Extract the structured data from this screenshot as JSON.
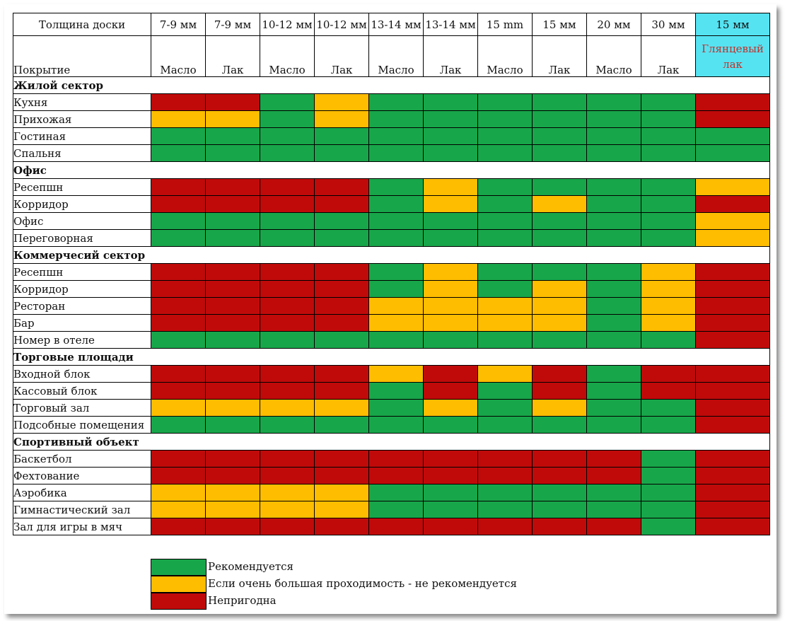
{
  "title_header": {
    "thickness_label": "Толщина доски",
    "coating_label": "Покрытие"
  },
  "columns": [
    {
      "thickness": "7-9 мм",
      "coating": "Масло"
    },
    {
      "thickness": "7-9 мм",
      "coating": "Лак"
    },
    {
      "thickness": "10-12 мм",
      "coating": "Масло"
    },
    {
      "thickness": "10-12 мм",
      "coating": "Лак"
    },
    {
      "thickness": "13-14 мм",
      "coating": "Масло"
    },
    {
      "thickness": "13-14 мм",
      "coating": "Лак"
    },
    {
      "thickness": "15 mm",
      "coating": "Масло"
    },
    {
      "thickness": "15 мм",
      "coating": "Лак"
    },
    {
      "thickness": "20 мм",
      "coating": "Масло"
    },
    {
      "thickness": "30 мм",
      "coating": "Лак"
    },
    {
      "thickness": "15 мм",
      "coating": "Глянцевый лак"
    }
  ],
  "sections": [
    {
      "title": "Жилой сектор",
      "rows": [
        {
          "name": "Кухня",
          "cells": [
            "r",
            "r",
            "g",
            "y",
            "g",
            "g",
            "g",
            "g",
            "g",
            "g",
            "r"
          ]
        },
        {
          "name": "Прихожая",
          "cells": [
            "y",
            "y",
            "g",
            "y",
            "g",
            "g",
            "g",
            "g",
            "g",
            "g",
            "r"
          ]
        },
        {
          "name": "Гостиная",
          "cells": [
            "g",
            "g",
            "g",
            "g",
            "g",
            "g",
            "g",
            "g",
            "g",
            "g",
            "g"
          ]
        },
        {
          "name": "Спальня",
          "cells": [
            "g",
            "g",
            "g",
            "g",
            "g",
            "g",
            "g",
            "g",
            "g",
            "g",
            "g"
          ]
        }
      ]
    },
    {
      "title": "Офис",
      "rows": [
        {
          "name": "Ресепшн",
          "cells": [
            "r",
            "r",
            "r",
            "r",
            "g",
            "y",
            "g",
            "g",
            "g",
            "g",
            "y"
          ]
        },
        {
          "name": "Корридор",
          "cells": [
            "r",
            "r",
            "r",
            "r",
            "g",
            "y",
            "g",
            "y",
            "g",
            "g",
            "r"
          ]
        },
        {
          "name": "Офис",
          "cells": [
            "g",
            "g",
            "g",
            "g",
            "g",
            "g",
            "g",
            "g",
            "g",
            "g",
            "y"
          ]
        },
        {
          "name": "Переговорная",
          "cells": [
            "g",
            "g",
            "g",
            "g",
            "g",
            "g",
            "g",
            "g",
            "g",
            "g",
            "y"
          ]
        }
      ]
    },
    {
      "title": "Коммерчесий сектор",
      "rows": [
        {
          "name": "Ресепшн",
          "cells": [
            "r",
            "r",
            "r",
            "r",
            "g",
            "y",
            "g",
            "g",
            "g",
            "y",
            "r"
          ]
        },
        {
          "name": "Корридор",
          "cells": [
            "r",
            "r",
            "r",
            "r",
            "g",
            "y",
            "g",
            "y",
            "g",
            "y",
            "r"
          ]
        },
        {
          "name": "Ресторан",
          "cells": [
            "r",
            "r",
            "r",
            "r",
            "y",
            "y",
            "y",
            "y",
            "g",
            "y",
            "r"
          ]
        },
        {
          "name": "Бар",
          "cells": [
            "r",
            "r",
            "r",
            "r",
            "y",
            "y",
            "y",
            "y",
            "g",
            "y",
            "r"
          ]
        },
        {
          "name": "Номер в отеле",
          "cells": [
            "g",
            "g",
            "g",
            "g",
            "g",
            "g",
            "g",
            "g",
            "g",
            "g",
            "r"
          ]
        }
      ]
    },
    {
      "title": "Торговые площади",
      "rows": [
        {
          "name": "Входной блок",
          "cells": [
            "r",
            "r",
            "r",
            "r",
            "y",
            "r",
            "y",
            "r",
            "g",
            "r",
            "r"
          ]
        },
        {
          "name": "Кассовый блок",
          "cells": [
            "r",
            "r",
            "r",
            "r",
            "g",
            "r",
            "g",
            "r",
            "g",
            "r",
            "r"
          ]
        },
        {
          "name": "Торговый зал",
          "cells": [
            "y",
            "y",
            "y",
            "y",
            "g",
            "y",
            "g",
            "y",
            "g",
            "g",
            "r"
          ]
        },
        {
          "name": "Подсобные помещения",
          "cells": [
            "g",
            "g",
            "g",
            "g",
            "g",
            "g",
            "g",
            "g",
            "g",
            "g",
            "r"
          ]
        }
      ]
    },
    {
      "title": "Спортивный объект",
      "rows": [
        {
          "name": "Баскетбол",
          "cells": [
            "r",
            "r",
            "r",
            "r",
            "r",
            "r",
            "r",
            "r",
            "r",
            "g",
            "r"
          ]
        },
        {
          "name": "Фехтование",
          "cells": [
            "r",
            "r",
            "r",
            "r",
            "r",
            "r",
            "r",
            "r",
            "r",
            "g",
            "r"
          ]
        },
        {
          "name": "Аэробика",
          "cells": [
            "y",
            "y",
            "y",
            "y",
            "g",
            "g",
            "g",
            "g",
            "g",
            "g",
            "r"
          ]
        },
        {
          "name": "Гимнастический зал",
          "cells": [
            "y",
            "y",
            "y",
            "y",
            "g",
            "g",
            "g",
            "g",
            "g",
            "g",
            "r"
          ]
        },
        {
          "name": "Зал для игры в мяч",
          "cells": [
            "r",
            "r",
            "r",
            "r",
            "r",
            "r",
            "r",
            "r",
            "r",
            "g",
            "r"
          ]
        }
      ]
    }
  ],
  "legend": [
    {
      "key": "g",
      "color": "#18a64a",
      "label": "Рекомендуется"
    },
    {
      "key": "y",
      "color": "#ffbd00",
      "label": "Если очень большая проходимость - не рекомендуется"
    },
    {
      "key": "r",
      "color": "#c00a0a",
      "label": "Непригодна"
    }
  ],
  "colors": {
    "recommended": "#18a64a",
    "caution": "#ffbd00",
    "unsuitable": "#c00a0a",
    "highlight_column": "#55e3f2",
    "highlight_text": "#c0312b"
  }
}
